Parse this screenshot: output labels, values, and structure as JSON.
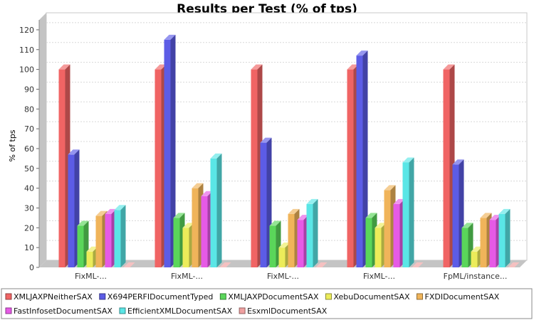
{
  "chart_data": {
    "type": "bar",
    "title": "Results per Test (% of tps)",
    "xlabel": "",
    "ylabel": "% of tps",
    "ylim": [
      0,
      125
    ],
    "yticks": [
      0,
      10,
      20,
      30,
      40,
      50,
      60,
      70,
      80,
      90,
      100,
      110,
      120
    ],
    "grid": true,
    "legend_position": "bottom",
    "categories": [
      "FixML-...",
      "FixML-...",
      "FixML-...",
      "FixML-...",
      "FpML/instance..."
    ],
    "series": [
      {
        "name": "XMLJAXPNeitherSAX",
        "color": "#f06464",
        "values": [
          100,
          100,
          100,
          100,
          100
        ]
      },
      {
        "name": "X694PERFIDocumentTyped",
        "color": "#5c5ce6",
        "values": [
          57,
          115,
          63,
          107,
          52
        ]
      },
      {
        "name": "XMLJAXPDocumentSAX",
        "color": "#5ad65a",
        "values": [
          21,
          25,
          21,
          25,
          20
        ]
      },
      {
        "name": "XebuDocumentSAX",
        "color": "#ecec5a",
        "values": [
          8,
          20,
          10,
          20,
          8
        ]
      },
      {
        "name": "FXDIDocumentSAX",
        "color": "#f0b45a",
        "values": [
          26,
          40,
          27,
          39,
          25
        ]
      },
      {
        "name": "FastInfosetDocumentSAX",
        "color": "#e65ae6",
        "values": [
          27,
          36,
          24,
          32,
          24
        ]
      },
      {
        "name": "EfficientXMLDocumentSAX",
        "color": "#5ae6e6",
        "values": [
          29,
          55,
          32,
          53,
          27
        ]
      },
      {
        "name": "EsxmlDocumentSAX",
        "color": "#f0a0a0",
        "values": [
          0,
          0,
          0,
          0,
          0
        ]
      }
    ]
  }
}
